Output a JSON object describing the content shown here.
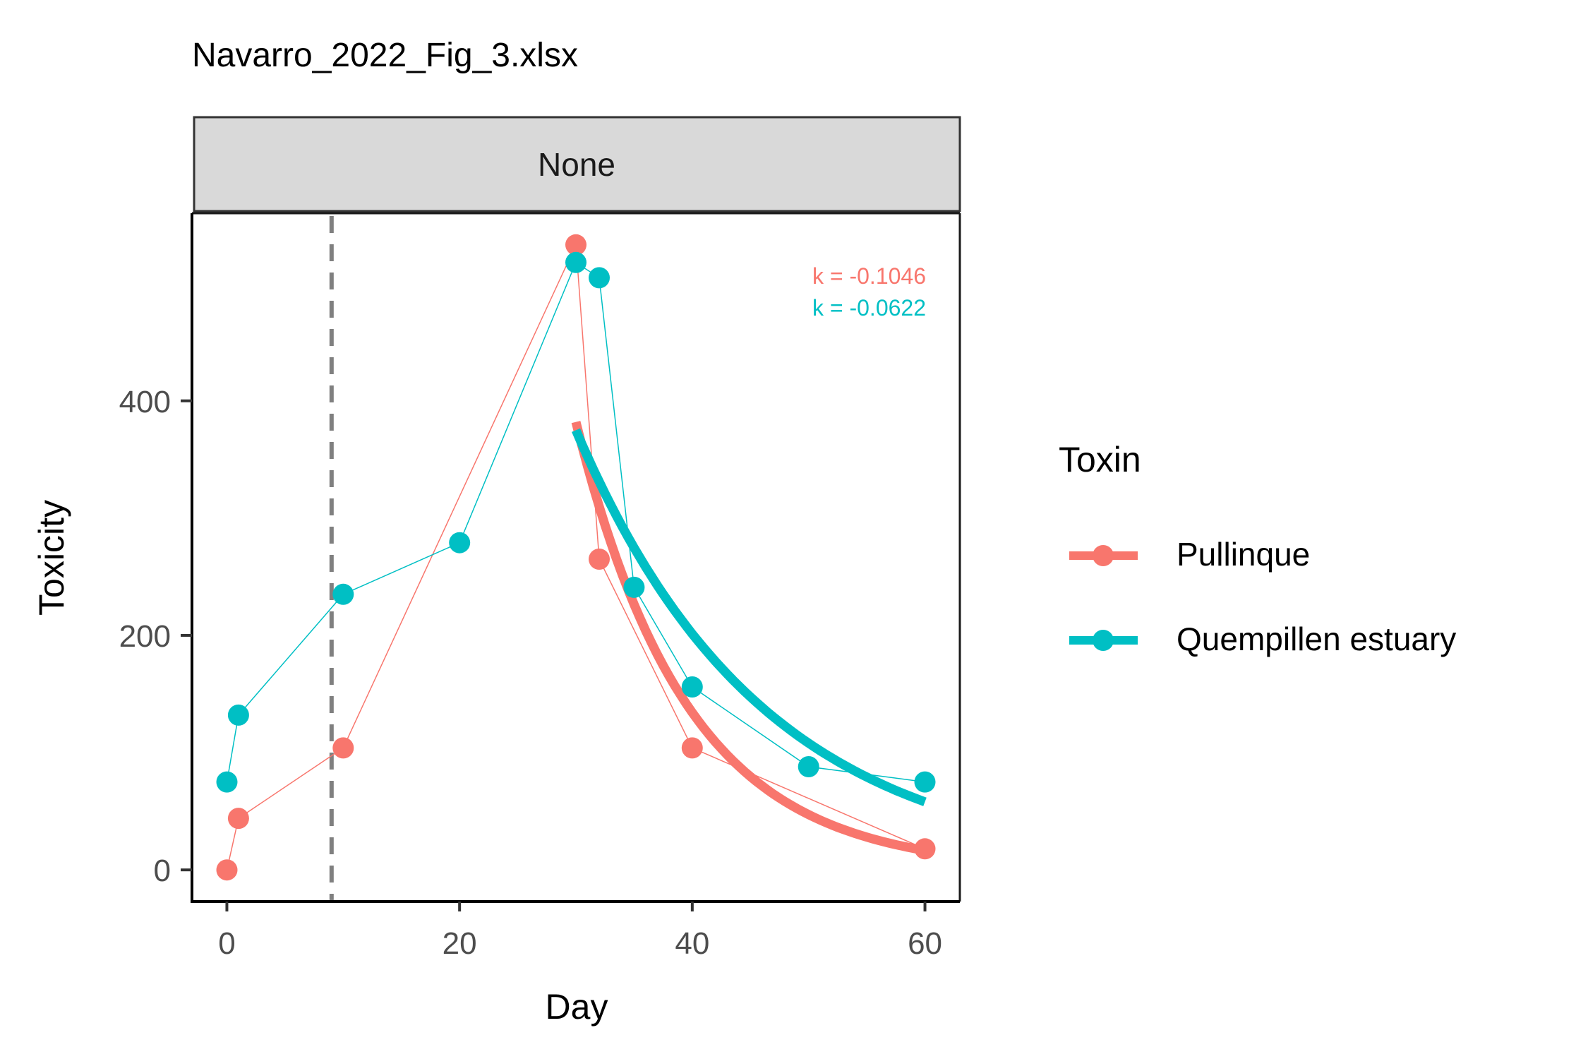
{
  "chart_data": {
    "type": "line",
    "title": "Navarro_2022_Fig_3.xlsx",
    "facet_label": "None",
    "xlabel": "Day",
    "ylabel": "Toxicity",
    "xlim": [
      -3,
      63
    ],
    "ylim": [
      -27,
      560
    ],
    "x_ticks": [
      0,
      20,
      40,
      60
    ],
    "y_ticks": [
      0,
      200,
      400
    ],
    "x_tick_labels": [
      "0",
      "20",
      "40",
      "60"
    ],
    "y_tick_labels": [
      "0",
      "200",
      "400"
    ],
    "vline_x": 9,
    "grid": false,
    "legend_position": "right",
    "legend_title": "Toxin",
    "series": [
      {
        "name": "Pullinque",
        "color": "#F8766D",
        "x": [
          0,
          1,
          10,
          30,
          32,
          40,
          60
        ],
        "y": [
          0,
          44,
          104,
          533,
          265,
          104,
          18
        ],
        "fit": {
          "k": -0.1046,
          "label": "k = -0.1046",
          "x0": 30,
          "y0": 382,
          "x1": 60
        }
      },
      {
        "name": "Quempillen estuary",
        "color": "#00BFC4",
        "x": [
          0,
          1,
          10,
          20,
          30,
          32,
          35,
          40,
          50,
          60
        ],
        "y": [
          75,
          132,
          235,
          279,
          518,
          505,
          241,
          156,
          88,
          75
        ],
        "fit": {
          "k": -0.0622,
          "label": "k = -0.0622",
          "x0": 30,
          "y0": 375,
          "x1": 60
        }
      }
    ]
  }
}
